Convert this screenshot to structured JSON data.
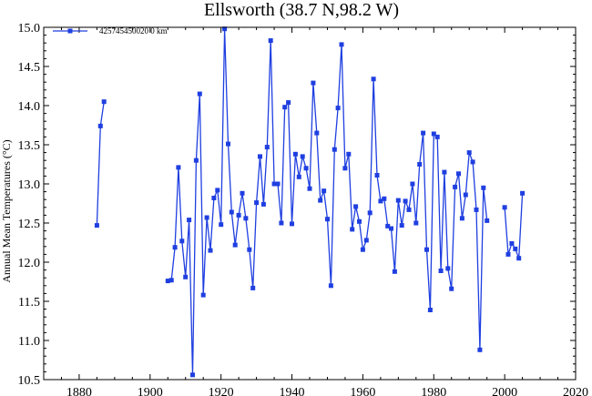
{
  "chart_data": {
    "type": "line",
    "title": "Ellsworth (38.7 N,98.2 W)",
    "xlabel": "",
    "ylabel": "Annual Mean Temperatures (°C)",
    "xlim": [
      1870,
      2020
    ],
    "ylim": [
      10.5,
      15.0
    ],
    "xticks": [
      1880,
      1900,
      1920,
      1940,
      1960,
      1980,
      2000,
      2020
    ],
    "yticks": [
      "10.5",
      "11.0",
      "11.5",
      "12.0",
      "12.5",
      "13.0",
      "13.5",
      "14.0",
      "14.5",
      "15.0"
    ],
    "legend_position": "top-left",
    "series_color": "#1f3fe0",
    "series": [
      {
        "name": "425745450020 0 km",
        "segments": [
          [
            [
              1885,
              12.47
            ],
            [
              1886,
              13.74
            ],
            [
              1887,
              14.05
            ]
          ],
          [
            [
              1905,
              11.76
            ],
            [
              1906,
              11.77
            ],
            [
              1907,
              12.19
            ],
            [
              1908,
              13.21
            ],
            [
              1909,
              12.27
            ],
            [
              1910,
              11.81
            ],
            [
              1911,
              12.54
            ],
            [
              1912,
              10.56
            ],
            [
              1913,
              13.3
            ],
            [
              1914,
              14.15
            ],
            [
              1915,
              11.58
            ],
            [
              1916,
              12.57
            ],
            [
              1917,
              12.15
            ],
            [
              1918,
              12.82
            ],
            [
              1919,
              12.92
            ],
            [
              1920,
              12.48
            ],
            [
              1921,
              14.98
            ],
            [
              1922,
              13.51
            ],
            [
              1923,
              12.64
            ],
            [
              1924,
              12.22
            ],
            [
              1925,
              12.6
            ],
            [
              1926,
              12.88
            ],
            [
              1927,
              12.56
            ],
            [
              1928,
              12.16
            ],
            [
              1929,
              11.67
            ],
            [
              1930,
              12.76
            ],
            [
              1931,
              13.35
            ],
            [
              1932,
              12.74
            ],
            [
              1933,
              13.47
            ],
            [
              1934,
              14.83
            ],
            [
              1935,
              13.0
            ],
            [
              1936,
              13.0
            ],
            [
              1937,
              12.5
            ],
            [
              1938,
              13.98
            ],
            [
              1939,
              14.04
            ],
            [
              1940,
              12.49
            ],
            [
              1941,
              13.38
            ],
            [
              1942,
              13.09
            ],
            [
              1943,
              13.35
            ],
            [
              1944,
              13.2
            ],
            [
              1945,
              12.94
            ],
            [
              1946,
              14.29
            ],
            [
              1947,
              13.65
            ],
            [
              1948,
              12.79
            ],
            [
              1949,
              12.91
            ],
            [
              1950,
              12.55
            ],
            [
              1951,
              11.7
            ],
            [
              1952,
              13.44
            ],
            [
              1953,
              13.97
            ],
            [
              1954,
              14.78
            ],
            [
              1955,
              13.2
            ],
            [
              1956,
              13.38
            ],
            [
              1957,
              12.42
            ],
            [
              1958,
              12.71
            ],
            [
              1959,
              12.52
            ],
            [
              1960,
              12.16
            ],
            [
              1961,
              12.28
            ],
            [
              1962,
              12.63
            ],
            [
              1963,
              14.34
            ],
            [
              1964,
              13.11
            ],
            [
              1965,
              12.78
            ],
            [
              1966,
              12.81
            ],
            [
              1967,
              12.46
            ],
            [
              1968,
              12.43
            ],
            [
              1969,
              11.88
            ],
            [
              1970,
              12.79
            ],
            [
              1971,
              12.47
            ],
            [
              1972,
              12.78
            ],
            [
              1973,
              12.67
            ],
            [
              1974,
              13.0
            ],
            [
              1975,
              12.5
            ],
            [
              1976,
              13.25
            ],
            [
              1977,
              13.65
            ],
            [
              1978,
              12.16
            ],
            [
              1979,
              11.39
            ],
            [
              1980,
              13.64
            ],
            [
              1981,
              13.6
            ],
            [
              1982,
              11.89
            ],
            [
              1983,
              13.15
            ],
            [
              1984,
              11.92
            ],
            [
              1985,
              11.66
            ],
            [
              1986,
              12.96
            ],
            [
              1987,
              13.13
            ],
            [
              1988,
              12.56
            ],
            [
              1989,
              12.86
            ],
            [
              1990,
              13.4
            ],
            [
              1991,
              13.28
            ],
            [
              1992,
              12.67
            ],
            [
              1993,
              10.88
            ],
            [
              1994,
              12.95
            ],
            [
              1995,
              12.53
            ]
          ],
          [
            [
              2000,
              12.7
            ],
            [
              2001,
              12.1
            ],
            [
              2002,
              12.24
            ],
            [
              2003,
              12.17
            ],
            [
              2004,
              12.05
            ],
            [
              2005,
              12.88
            ]
          ]
        ]
      }
    ]
  }
}
